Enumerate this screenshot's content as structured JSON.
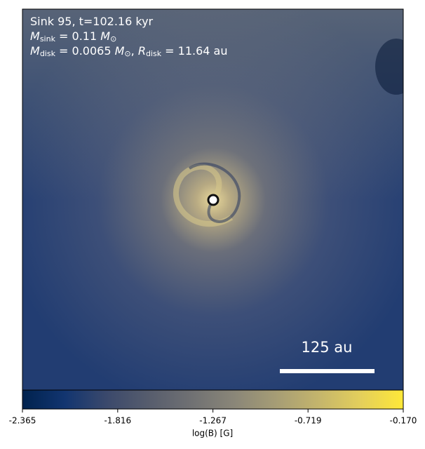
{
  "chart_data": {
    "type": "image",
    "annotations": [
      {
        "parts": [
          "Sink 95, t=102.16 kyr"
        ]
      },
      {
        "parts": [
          "M",
          "sink",
          " = 0.11 ",
          "M",
          "⊙"
        ]
      },
      {
        "parts": [
          "M",
          "disk",
          " = 0.0065 ",
          "M",
          "⊙",
          ", ",
          "R",
          "disk",
          " = 11.64 au"
        ]
      }
    ],
    "scale_bar": "125 au",
    "colorbar": {
      "label": "log(B) [G]",
      "clim": [
        -2.365,
        -0.17
      ],
      "ticks": [
        -2.365,
        -1.816,
        -1.267,
        -0.719,
        {
          "value": -0.17,
          "label": "-0.170"
        }
      ],
      "cmap": "cividis",
      "colors": [
        "#00224e",
        "#123570",
        "#3b496c",
        "#575d6d",
        "#707173",
        "#8a8678",
        "#a69d75",
        "#c4b56c",
        "#e4cf5b",
        "#fee838"
      ]
    }
  }
}
